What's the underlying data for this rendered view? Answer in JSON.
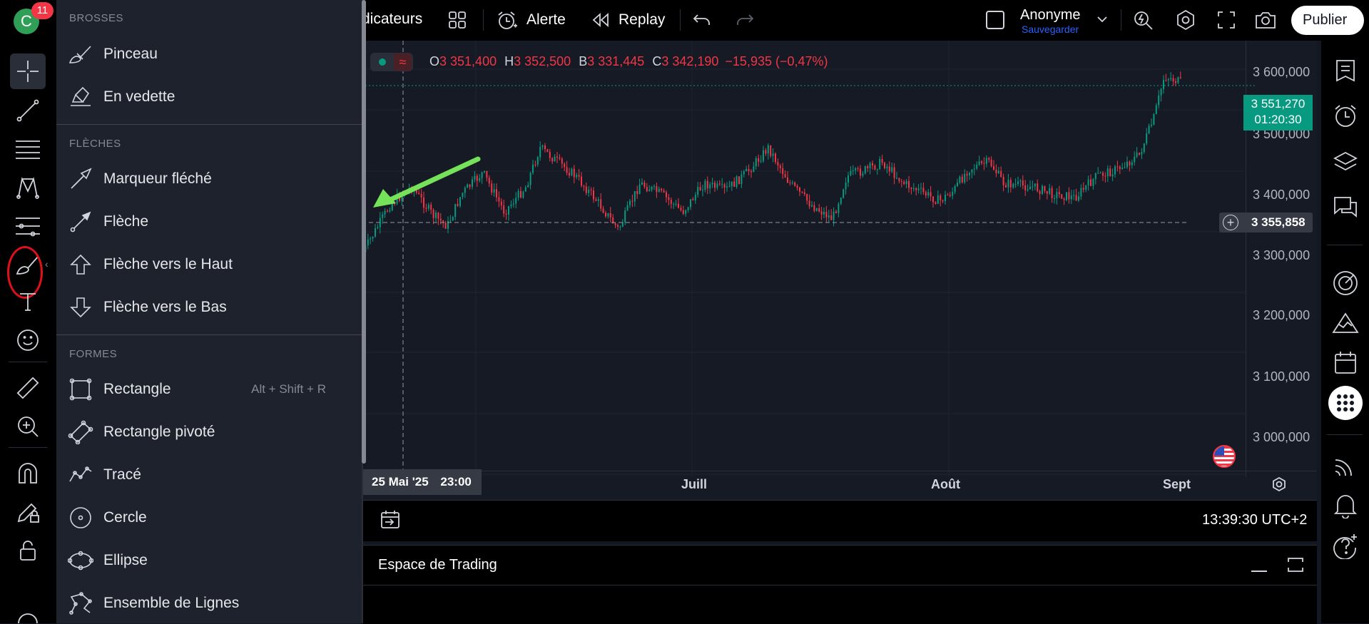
{
  "header": {
    "avatar_letter": "C",
    "notif_count": "11",
    "indicators": "dicateurs",
    "alert": "Alerte",
    "replay": "Replay",
    "user_name": "Anonyme",
    "user_sub": "Sauvegarder",
    "publish": "Publier"
  },
  "menu": {
    "sections": [
      {
        "title": "BROSSES",
        "items": [
          {
            "label": "Pinceau",
            "icon": "brush-icon"
          },
          {
            "label": "En vedette",
            "icon": "highlighter-icon"
          }
        ]
      },
      {
        "title": "FLÈCHES",
        "items": [
          {
            "label": "Marqueur fléché",
            "icon": "arrow-marker-icon"
          },
          {
            "label": "Flèche",
            "icon": "arrow-icon"
          },
          {
            "label": "Flèche vers le Haut",
            "icon": "arrow-up-icon"
          },
          {
            "label": "Flèche vers le Bas",
            "icon": "arrow-down-icon"
          }
        ]
      },
      {
        "title": "FORMES",
        "items": [
          {
            "label": "Rectangle",
            "icon": "rectangle-icon",
            "hotkey": "Alt + Shift + R"
          },
          {
            "label": "Rectangle pivoté",
            "icon": "rotated-rectangle-icon"
          },
          {
            "label": "Tracé",
            "icon": "path-icon"
          },
          {
            "label": "Cercle",
            "icon": "circle-icon"
          },
          {
            "label": "Ellipse",
            "icon": "ellipse-icon"
          },
          {
            "label": "Ensemble de Lignes",
            "icon": "polyline-icon"
          }
        ]
      }
    ]
  },
  "legend": {
    "o_label": "O",
    "o_value": "3 351,400",
    "h_label": "H",
    "h_value": "3 352,500",
    "b_label": "B",
    "b_value": "3 331,445",
    "c_label": "C",
    "c_value": "3 342,190",
    "change": "−15,935 (−0,47%)"
  },
  "price_axis": {
    "ticks": [
      "3 600,000",
      "3 500,000",
      "3 400,000",
      "3 300,000",
      "3 200,000",
      "3 100,000",
      "3 000,000"
    ],
    "current_price": "3 551,270",
    "countdown": "01:20:30",
    "crosshair_price": "3 355,858"
  },
  "time_axis": {
    "crosshair_date": "25 Mai '25",
    "crosshair_time": "23:00",
    "labels": [
      "Juill",
      "Août",
      "Sept"
    ]
  },
  "bottom": {
    "clock": "13:39:30 UTC+2",
    "trading_title": "Espace de Trading"
  },
  "colors": {
    "accent_green": "#089981",
    "down_red": "#f23645",
    "annotation_arrow": "#76e25a",
    "annotation_circle": "#e0101a"
  }
}
